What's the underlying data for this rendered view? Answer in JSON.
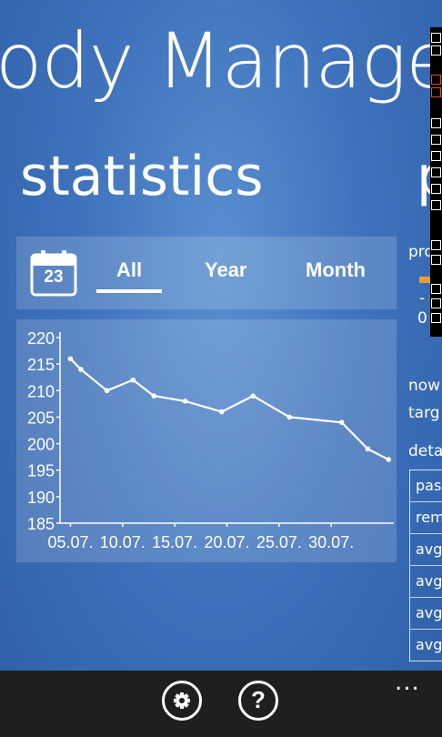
{
  "app": {
    "title": "ody Manage"
  },
  "page": {
    "title": "statistics",
    "next_title": "p"
  },
  "tabs": {
    "calendar_day": "23",
    "items": [
      {
        "label": "All",
        "selected": true
      },
      {
        "label": "Year",
        "selected": false
      },
      {
        "label": "Month",
        "selected": false
      }
    ]
  },
  "chart_data": {
    "type": "line",
    "x_tick_labels": [
      "05.07.",
      "10.07.",
      "15.07.",
      "20.07.",
      "25.07.",
      "30.07."
    ],
    "x_ticks": [
      5,
      10,
      15,
      20,
      25,
      30
    ],
    "y_ticks": [
      185,
      190,
      195,
      200,
      205,
      210,
      215,
      220
    ],
    "ylim": [
      185,
      220
    ],
    "xlim": [
      4,
      35
    ],
    "grid": false,
    "series": [
      {
        "color": "#ffffff",
        "points": [
          {
            "x": 5,
            "y": 216
          },
          {
            "x": 6,
            "y": 214
          },
          {
            "x": 8.5,
            "y": 210
          },
          {
            "x": 11,
            "y": 212
          },
          {
            "x": 13,
            "y": 209
          },
          {
            "x": 16,
            "y": 208
          },
          {
            "x": 19.5,
            "y": 206
          },
          {
            "x": 22.5,
            "y": 209
          },
          {
            "x": 26,
            "y": 205
          },
          {
            "x": 31,
            "y": 204
          },
          {
            "x": 33.5,
            "y": 199
          },
          {
            "x": 35.5,
            "y": 197
          }
        ]
      }
    ]
  },
  "right_panel": {
    "progress_label": "pro",
    "progress_dash": "-",
    "progress_zero": "0",
    "now_label": "now",
    "target_label": "targ",
    "details_label": "deta",
    "details_rows": [
      "pas",
      "rem",
      "avg",
      "avg",
      "avg",
      "avg"
    ]
  },
  "appbar": {
    "more": "..."
  },
  "colors": {
    "accent": "#f0a020",
    "appbar": "#1f1f1f"
  }
}
